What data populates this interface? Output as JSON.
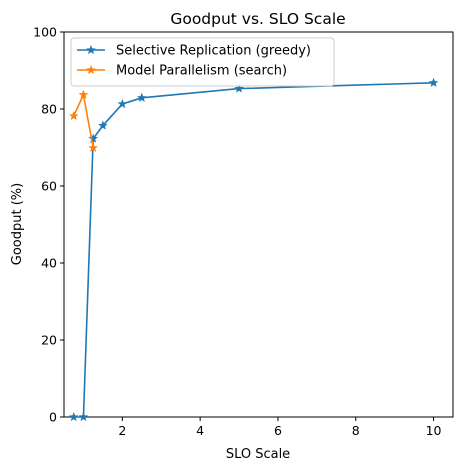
{
  "chart_data": {
    "type": "line",
    "title": "Goodput vs. SLO Scale",
    "xlabel": "SLO Scale",
    "ylabel": "Goodput (%)",
    "xlim": [
      0.5,
      10.5
    ],
    "ylim": [
      0,
      100
    ],
    "xticks": [
      2,
      4,
      6,
      8,
      10
    ],
    "yticks": [
      0,
      20,
      40,
      60,
      80,
      100
    ],
    "grid": false,
    "legend_position": "top-left",
    "marker": "star",
    "series": [
      {
        "name": "Selective Replication (greedy)",
        "color": "#1f77b4",
        "x": [
          0.75,
          1.0,
          1.25,
          1.5,
          2.0,
          2.5,
          5.0,
          10.0
        ],
        "y": [
          0,
          0,
          72.3,
          75.7,
          81.3,
          82.9,
          85.3,
          86.8
        ]
      },
      {
        "name": "Model Parallelism (search)",
        "color": "#ff7f0e",
        "x": [
          0.75,
          1.0,
          1.25
        ],
        "y": [
          78.2,
          83.7,
          69.9
        ]
      }
    ]
  }
}
